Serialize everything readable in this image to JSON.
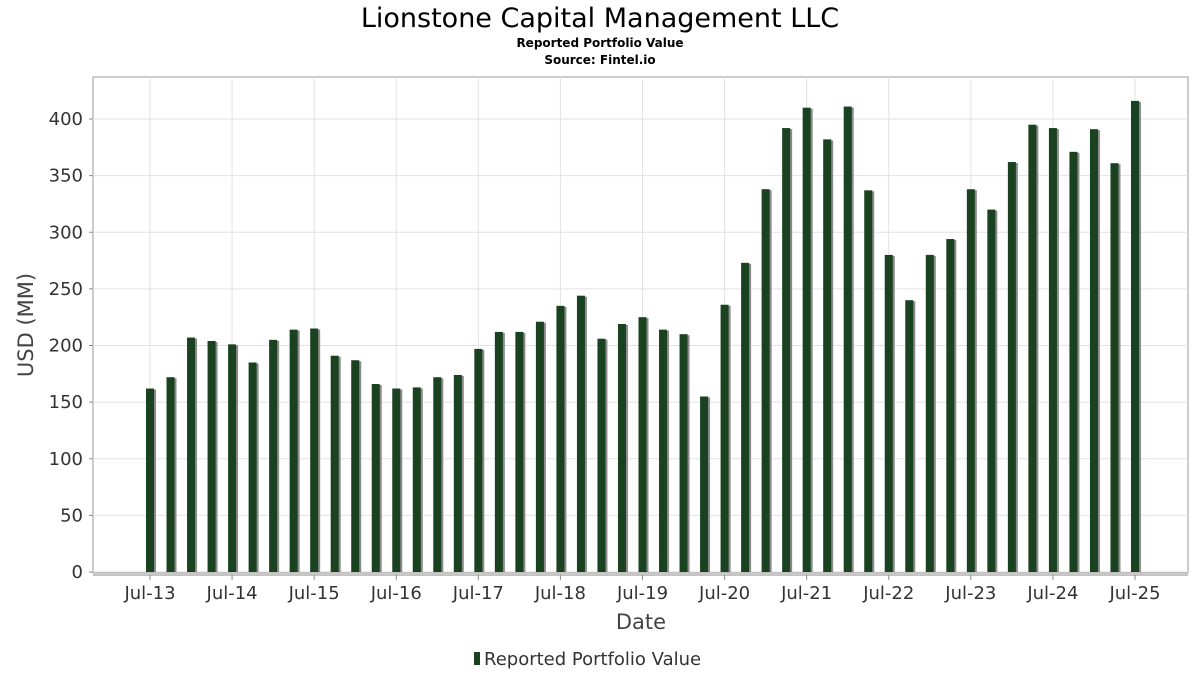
{
  "chart_data": {
    "type": "bar",
    "title": "Lionstone Capital Management LLC",
    "subtitle": "Reported Portfolio Value",
    "source": "Source: Fintel.io",
    "xlabel": "Date",
    "ylabel": "USD (MM)",
    "ylim": [
      0,
      430
    ],
    "yticks": [
      0,
      50,
      100,
      150,
      200,
      250,
      300,
      350,
      400
    ],
    "xticks": [
      "Jul-13",
      "Jul-14",
      "Jul-15",
      "Jul-16",
      "Jul-17",
      "Jul-18",
      "Jul-19",
      "Jul-20",
      "Jul-21",
      "Jul-22",
      "Jul-23",
      "Jul-24",
      "Jul-25"
    ],
    "grid": true,
    "legend_position": "bottom-center",
    "series": [
      {
        "name": "Reported Portfolio Value",
        "color": "#1a4220",
        "shadow_color": "#8a8a8a",
        "values": [
          162,
          172,
          207,
          204,
          201,
          185,
          205,
          214,
          215,
          191,
          187,
          166,
          162,
          163,
          172,
          174,
          197,
          212,
          212,
          221,
          235,
          244,
          206,
          219,
          225,
          214,
          210,
          155,
          236,
          273,
          338,
          392,
          410,
          382,
          411,
          337,
          280,
          240,
          280,
          294,
          338,
          320,
          362,
          395,
          392,
          371,
          391,
          361,
          416
        ]
      }
    ]
  }
}
